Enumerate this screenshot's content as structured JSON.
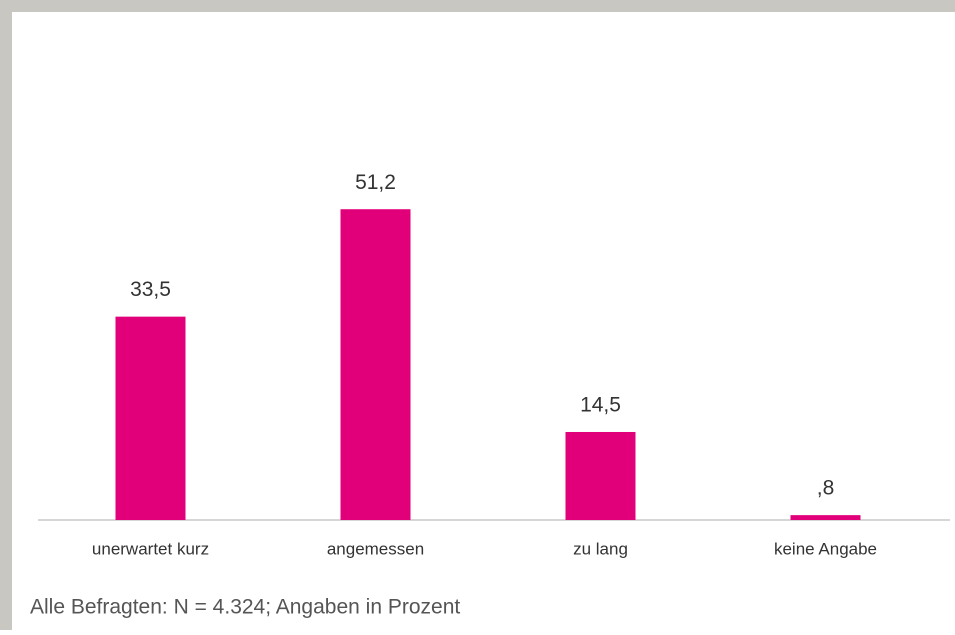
{
  "chart_data": {
    "type": "bar",
    "categories": [
      "unerwartet kurz",
      "angemessen",
      "zu lang",
      "keine Angabe"
    ],
    "values": [
      33.5,
      51.2,
      14.5,
      0.8
    ],
    "value_labels": [
      "33,5",
      "51,2",
      "14,5",
      ",8"
    ],
    "color": "#e2007a",
    "note": "Alle Befragten: N = 4.324; Angaben in Prozent"
  }
}
